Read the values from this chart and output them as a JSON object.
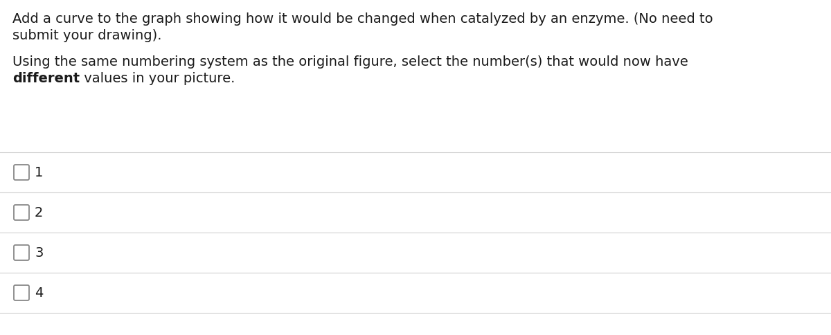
{
  "background_color": "#ffffff",
  "paragraph1_line1": "Add a curve to the graph showing how it would be changed when catalyzed by an enzyme. (No need to",
  "paragraph1_line2": "submit your drawing).",
  "paragraph2_line1": "Using the same numbering system as the original figure, select the number(s) that would now have",
  "paragraph2_bold": "different",
  "paragraph2_rest": " values in your picture.",
  "options": [
    "1",
    "2",
    "3",
    "4"
  ],
  "divider_color": "#d0d0d0",
  "text_color": "#1a1a1a",
  "checkbox_color": "#888888",
  "font_size_body": 14.0,
  "font_size_options": 14.0,
  "fig_width": 12.0,
  "fig_height": 4.84,
  "dpi": 100
}
